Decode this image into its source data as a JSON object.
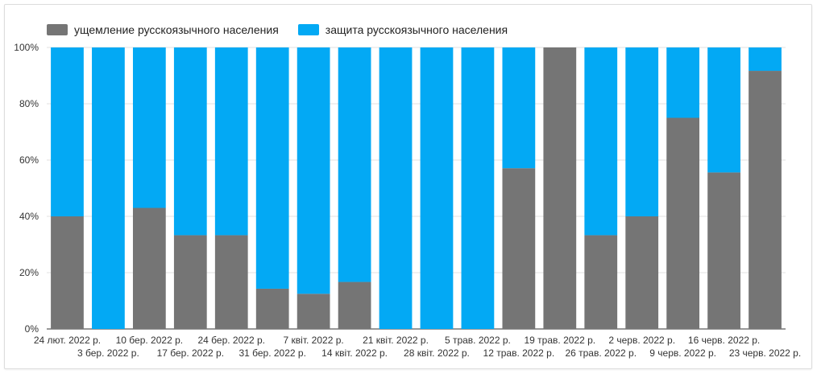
{
  "chart_data": {
    "type": "bar",
    "stacked": true,
    "normalized": true,
    "categories": [
      "24 лют. 2022 р.",
      "3 бер. 2022 р.",
      "10 бер. 2022 р.",
      "17 бер. 2022 р.",
      "24 бер. 2022 р.",
      "31 бер. 2022 р.",
      "7 квіт. 2022 р.",
      "14 квіт. 2022 р.",
      "21 квіт. 2022 р.",
      "28 квіт. 2022 р.",
      "5 трав. 2022 р.",
      "12 трав. 2022 р.",
      "19 трав. 2022 р.",
      "26 трав. 2022 р.",
      "2 черв. 2022 р.",
      "9 черв. 2022 р.",
      "16 черв. 2022 р.",
      "23 черв. 2022 р."
    ],
    "series": [
      {
        "name": "ущемление русскоязычного населения",
        "color": "#757575",
        "values": [
          40,
          0,
          43,
          33.3,
          33.3,
          14.3,
          12.5,
          16.7,
          0,
          0,
          0,
          57.1,
          100,
          33.3,
          40,
          75,
          55.6,
          91.7
        ]
      },
      {
        "name": "защита русскоязычного населения",
        "color": "#03a9f4",
        "values": [
          60,
          100,
          57,
          66.7,
          66.7,
          85.7,
          87.5,
          83.3,
          100,
          100,
          100,
          42.9,
          0,
          66.7,
          60,
          25,
          44.4,
          8.3
        ]
      }
    ],
    "y_ticks": [
      "0%",
      "20%",
      "40%",
      "60%",
      "80%",
      "100%"
    ],
    "ylim": [
      0,
      100
    ],
    "grid": true,
    "legend_position": "top-left"
  }
}
